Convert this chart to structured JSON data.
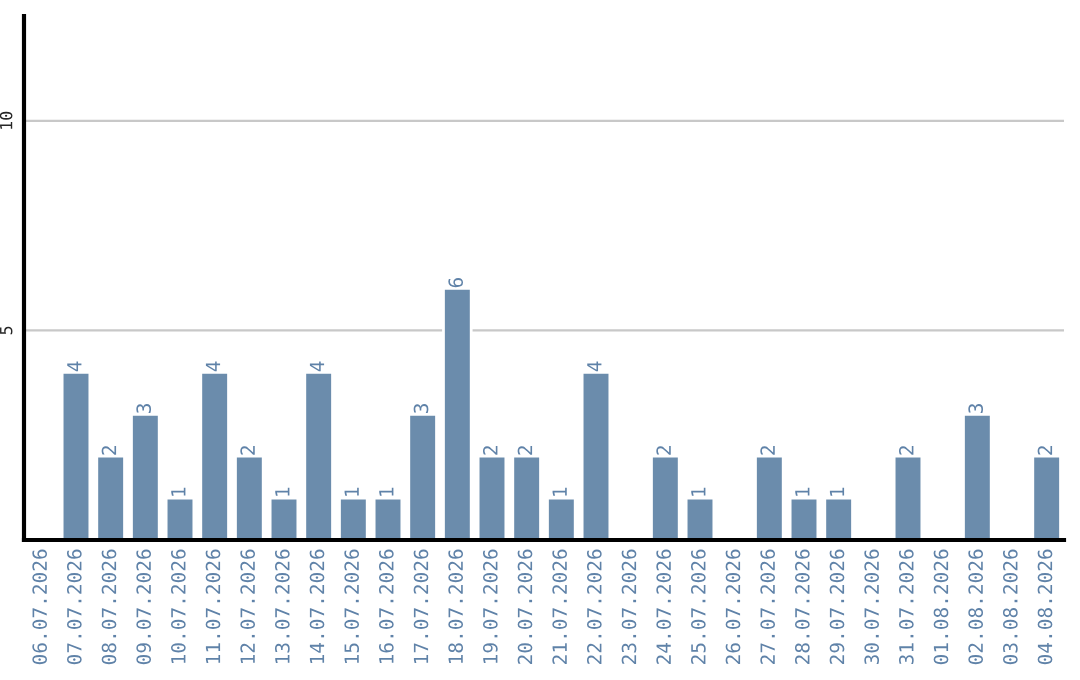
{
  "chart_data": {
    "type": "bar",
    "categories": [
      "06.07.2026",
      "07.07.2026",
      "08.07.2026",
      "09.07.2026",
      "10.07.2026",
      "11.07.2026",
      "12.07.2026",
      "13.07.2026",
      "14.07.2026",
      "15.07.2026",
      "16.07.2026",
      "17.07.2026",
      "18.07.2026",
      "19.07.2026",
      "20.07.2026",
      "21.07.2026",
      "22.07.2026",
      "23.07.2026",
      "24.07.2026",
      "25.07.2026",
      "26.07.2026",
      "27.07.2026",
      "28.07.2026",
      "29.07.2026",
      "30.07.2026",
      "31.07.2026",
      "01.08.2026",
      "02.08.2026",
      "03.08.2026",
      "04.08.2026"
    ],
    "values": [
      null,
      4,
      2,
      3,
      1,
      4,
      2,
      1,
      4,
      1,
      1,
      3,
      6,
      2,
      2,
      1,
      4,
      null,
      2,
      1,
      null,
      2,
      1,
      1,
      null,
      2,
      null,
      3,
      null,
      2
    ],
    "value_labels": [
      null,
      "4",
      "2",
      "3",
      "1",
      "4",
      "2",
      "1",
      "4",
      "1",
      "1",
      "3",
      "6",
      "2",
      "2",
      "1",
      "4",
      null,
      "2",
      "1",
      null,
      "2",
      "1",
      "1",
      null,
      "2",
      null,
      "3",
      null,
      "2"
    ],
    "color": "#6b8cac",
    "ylim": [
      0,
      12.5
    ],
    "yticks": [
      5,
      10
    ],
    "grid": "y"
  }
}
